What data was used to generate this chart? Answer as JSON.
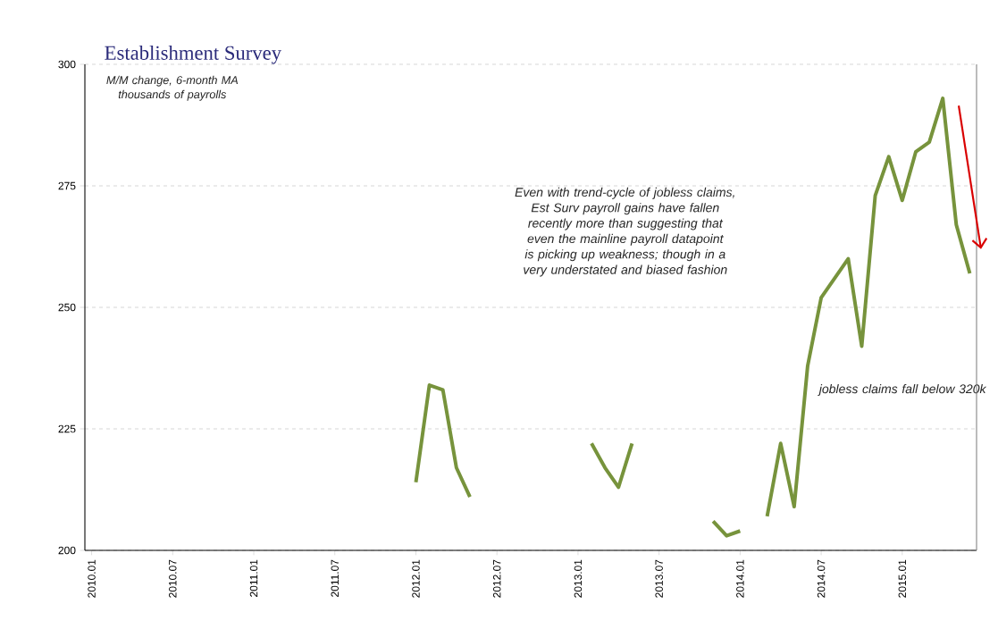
{
  "chart_data": {
    "type": "line",
    "title": "Establishment Survey",
    "subtitle": "M/M change, 6-month MA thousands of payrolls",
    "annotations": [
      "Even with trend-cycle of jobless claims, Est Surv payroll gains have fallen recently more than suggesting that even the mainline payroll datapoint is picking up weakness; though in a very understated and biased fashion",
      "jobless claims fall below 320k"
    ],
    "categories": [
      "2010.01",
      null,
      null,
      null,
      null,
      null,
      "2010.07",
      null,
      null,
      null,
      null,
      null,
      "2011.01",
      null,
      null,
      null,
      null,
      null,
      "2011.07",
      null,
      null,
      null,
      null,
      null,
      "2012.01",
      null,
      null,
      null,
      null,
      null,
      "2012.07",
      null,
      null,
      null,
      null,
      null,
      "2013.01",
      null,
      null,
      null,
      null,
      null,
      "2013.07",
      null,
      null,
      null,
      null,
      null,
      "2014.01",
      null,
      null,
      null,
      null,
      null,
      "2014.07",
      null,
      null,
      null,
      null,
      null,
      "2015.01",
      null,
      null,
      null,
      null,
      null
    ],
    "series": [
      {
        "color": "#77933c",
        "values": [
          null,
          null,
          null,
          null,
          null,
          null,
          null,
          null,
          null,
          null,
          null,
          null,
          null,
          null,
          null,
          null,
          null,
          null,
          null,
          null,
          null,
          null,
          null,
          null,
          214,
          234,
          233,
          217,
          211,
          null,
          null,
          null,
          null,
          null,
          null,
          null,
          null,
          222,
          217,
          213,
          222,
          null,
          null,
          null,
          null,
          null,
          206,
          203,
          204,
          null,
          207,
          222,
          209,
          238,
          252,
          256,
          260,
          242,
          273,
          281,
          272,
          282,
          284,
          293,
          267,
          257
        ]
      }
    ],
    "ylim": [
      200,
      300
    ],
    "yticks": [
      200,
      225,
      250,
      275,
      300
    ],
    "grid": "y",
    "marker": "none",
    "line_style": "solid"
  }
}
